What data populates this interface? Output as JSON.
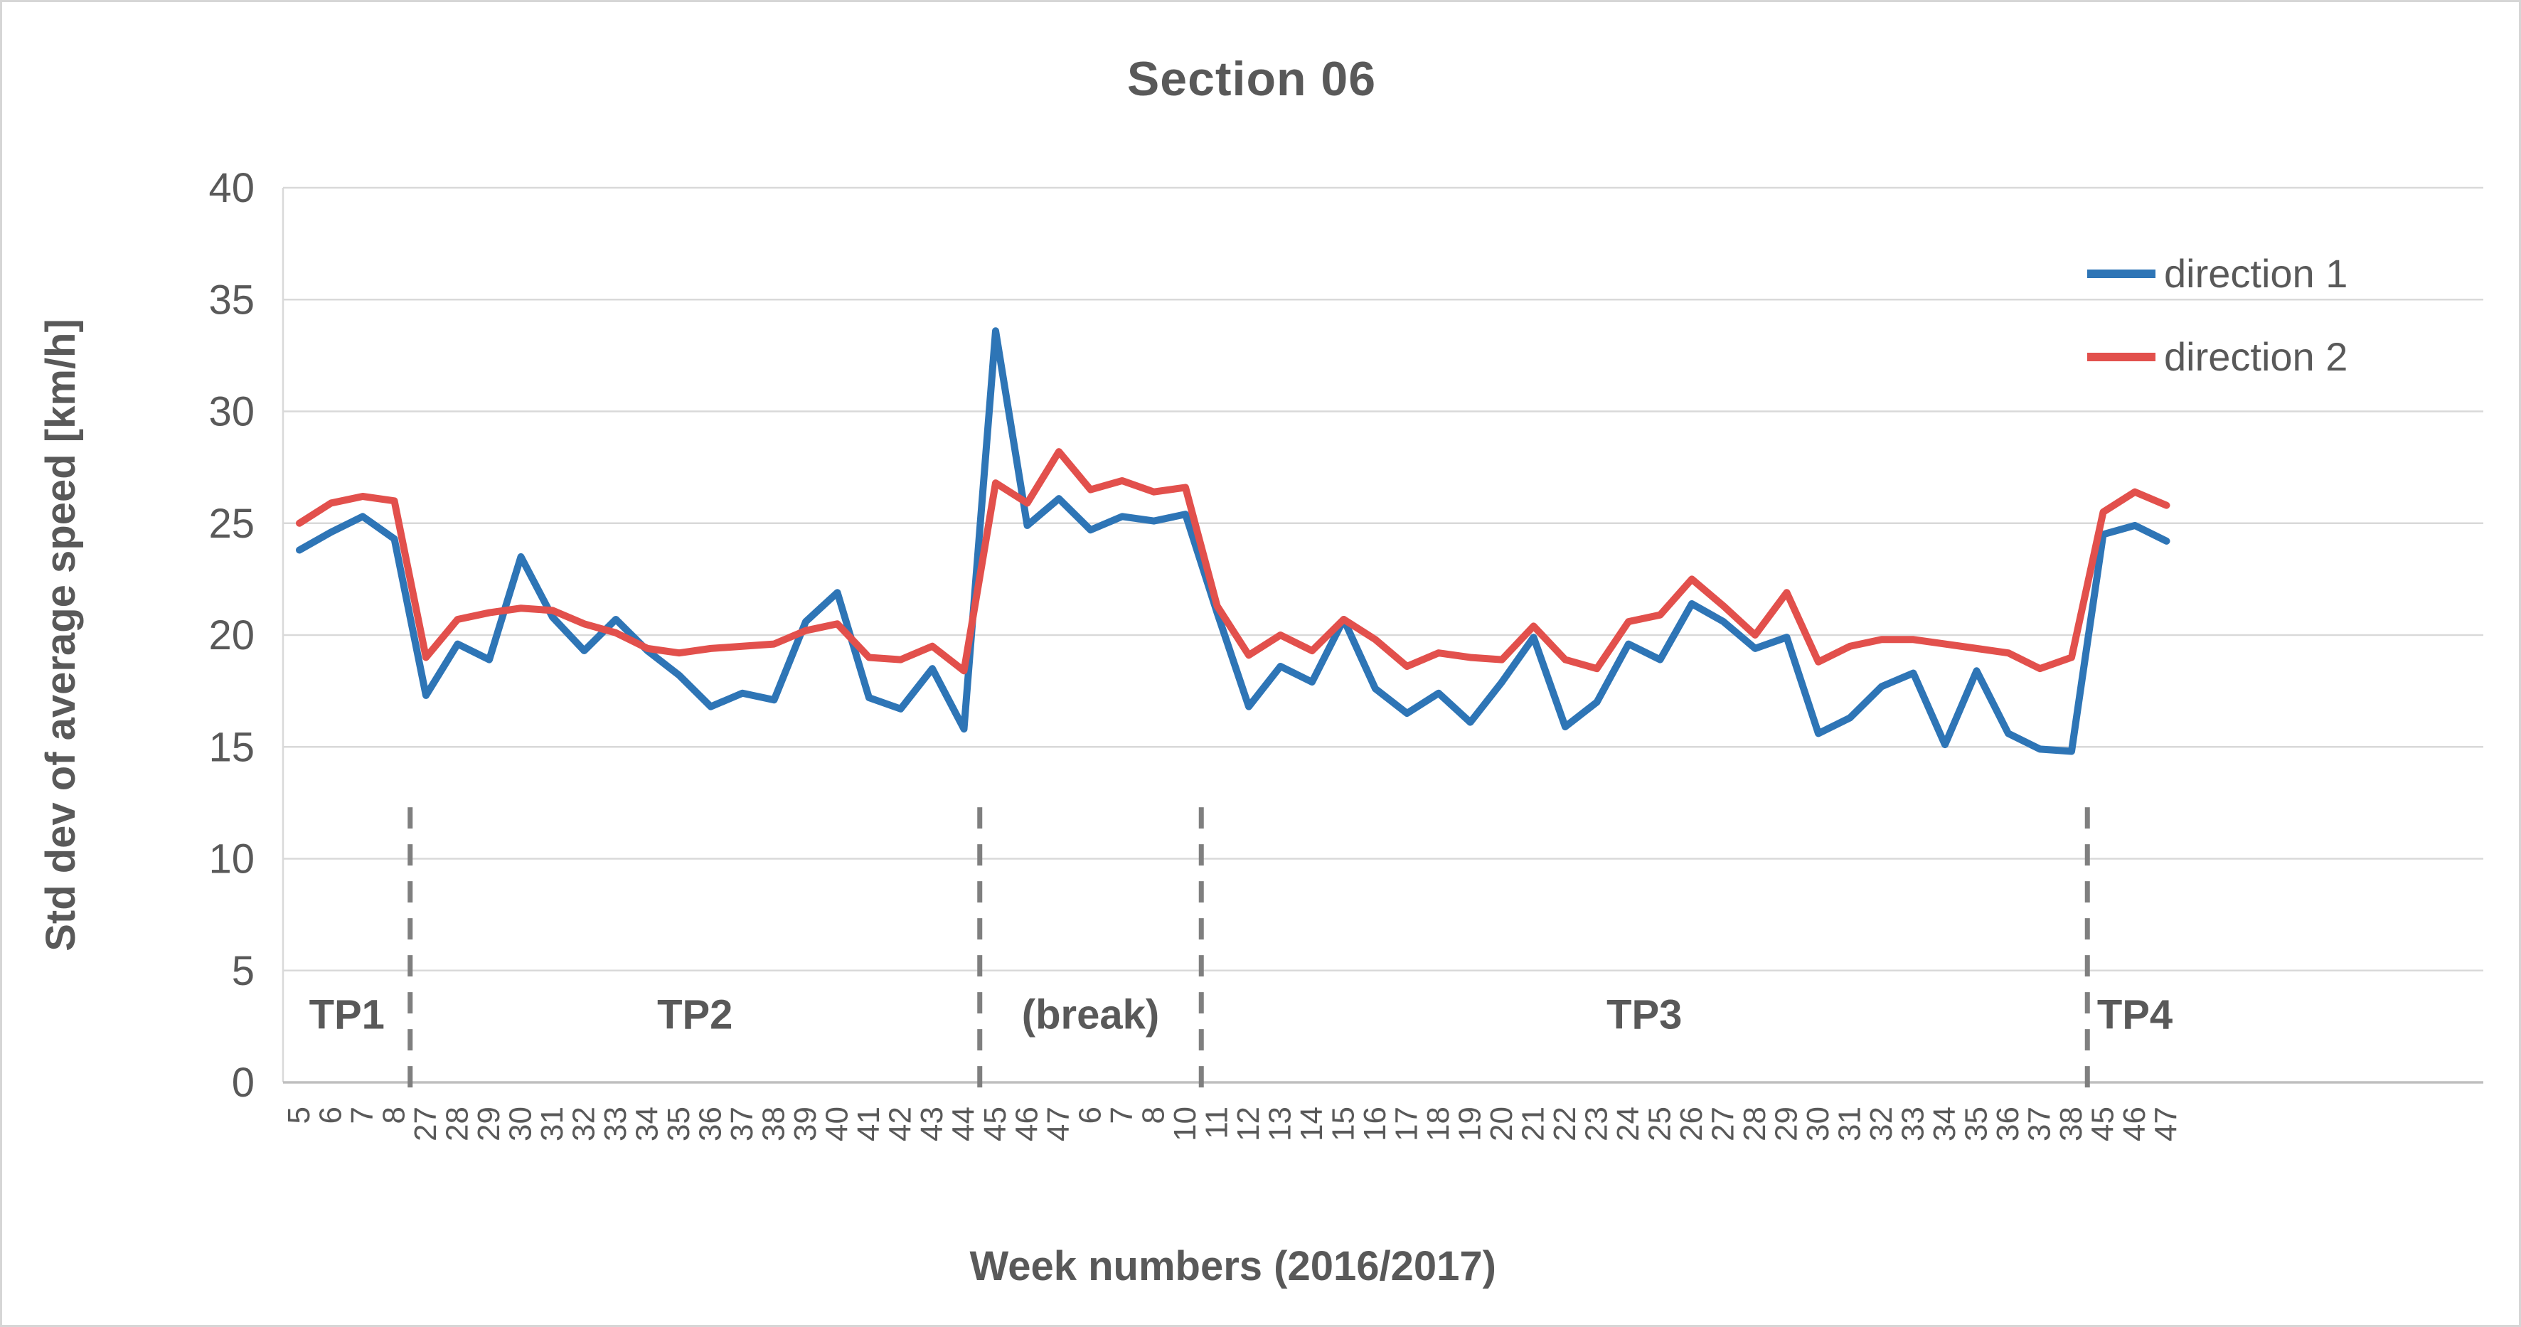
{
  "window": {
    "background": "#ffffff",
    "border_color": "#d6d6d6"
  },
  "styles": {
    "text_color": "#595959",
    "grid_color": "#d9d9d9",
    "axis_color": "#bfbfbf",
    "separator_color": "#7f7f7f"
  },
  "legend": {
    "entries": [
      "direction 1",
      "direction 2"
    ]
  },
  "chart_data": {
    "type": "line",
    "title": "Section 06",
    "xlabel": "Week numbers (2016/2017)",
    "ylabel": "Std dev of average speed [km/h]",
    "ylim": [
      0,
      40
    ],
    "yticks": [
      0,
      5,
      10,
      15,
      20,
      25,
      30,
      35,
      40
    ],
    "grid": true,
    "legend_position": "top-right",
    "categories": [
      "5",
      "6",
      "7",
      "8",
      "27",
      "28",
      "29",
      "30",
      "31",
      "32",
      "33",
      "34",
      "35",
      "36",
      "37",
      "38",
      "39",
      "40",
      "41",
      "42",
      "43",
      "44",
      "45",
      "46",
      "47",
      "6",
      "7",
      "8",
      "10",
      "11",
      "12",
      "13",
      "14",
      "15",
      "16",
      "17",
      "18",
      "19",
      "20",
      "21",
      "22",
      "23",
      "24",
      "25",
      "26",
      "27",
      "28",
      "29",
      "30",
      "31",
      "32",
      "33",
      "34",
      "35",
      "36",
      "37",
      "38",
      "45",
      "46",
      "47"
    ],
    "series": [
      {
        "name": "direction 1",
        "color": "#2E75B6",
        "values": [
          23.8,
          24.6,
          25.3,
          24.3,
          17.3,
          19.6,
          18.9,
          23.5,
          20.8,
          19.3,
          20.7,
          19.3,
          18.2,
          16.8,
          17.4,
          17.1,
          20.6,
          21.9,
          17.2,
          16.7,
          18.5,
          15.8,
          33.6,
          24.9,
          26.1,
          24.7,
          25.3,
          25.1,
          25.4,
          21.0,
          16.8,
          18.6,
          17.9,
          20.7,
          17.6,
          16.5,
          17.4,
          16.1,
          17.9,
          19.9,
          15.9,
          17.0,
          19.6,
          18.9,
          21.4,
          20.6,
          19.4,
          19.9,
          15.6,
          16.3,
          17.7,
          18.3,
          15.1,
          18.4,
          15.6,
          14.9,
          14.8,
          24.5,
          24.9,
          24.2
        ]
      },
      {
        "name": "direction 2",
        "color": "#E2504C",
        "values": [
          25.0,
          25.9,
          26.2,
          26.0,
          19.0,
          20.7,
          21.0,
          21.2,
          21.1,
          20.5,
          20.1,
          19.4,
          19.2,
          19.4,
          19.5,
          19.6,
          20.2,
          20.5,
          19.0,
          18.9,
          19.5,
          18.4,
          26.8,
          25.9,
          28.2,
          26.5,
          26.9,
          26.4,
          26.6,
          21.3,
          19.1,
          20.0,
          19.3,
          20.7,
          19.8,
          18.6,
          19.2,
          19.0,
          18.9,
          20.4,
          18.9,
          18.5,
          20.6,
          20.9,
          22.5,
          21.3,
          20.0,
          21.9,
          18.8,
          19.5,
          19.8,
          19.8,
          19.6,
          19.4,
          19.2,
          18.5,
          19.0,
          25.5,
          26.4,
          25.8
        ]
      }
    ],
    "sections": [
      {
        "label": "TP1",
        "from": 0,
        "to": 3
      },
      {
        "label": "TP2",
        "from": 4,
        "to": 21
      },
      {
        "label": "(break)",
        "from": 22,
        "to": 28
      },
      {
        "label": "TP3",
        "from": 29,
        "to": 56
      },
      {
        "label": "TP4",
        "from": 57,
        "to": 59
      }
    ],
    "separator_top_value": 12.3,
    "section_label_value": 2.4
  }
}
